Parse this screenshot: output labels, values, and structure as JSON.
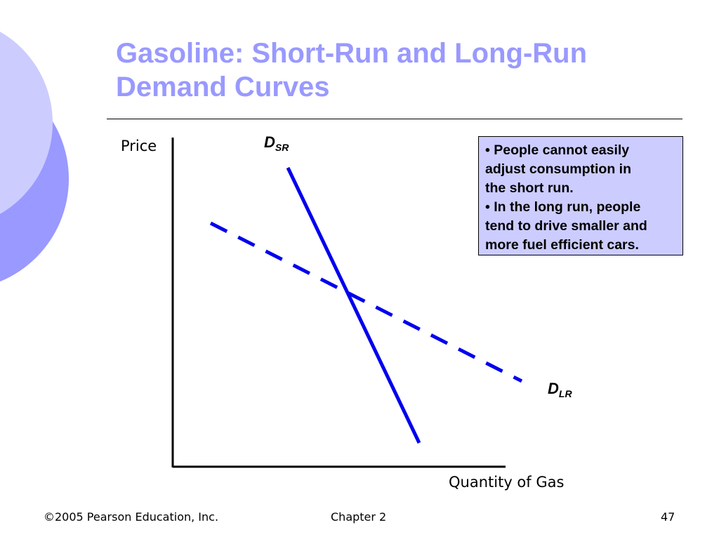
{
  "slide": {
    "title_line1": "Gasoline: Short-Run and Long-Run",
    "title_line2": "Demand Curves",
    "colors": {
      "title": "#9999ff",
      "curves": "#0000ee",
      "note_box": "#ccccff",
      "deco_light": "#ccccff",
      "deco_dark": "#9999ff"
    }
  },
  "diagram": {
    "y_axis_label": "Price",
    "x_axis_label": "Quantity of Gas",
    "short_run_curve": {
      "label_main": "D",
      "label_sub": "SR",
      "style": "solid"
    },
    "long_run_curve": {
      "label_main": "D",
      "label_sub": "LR",
      "style": "dashed"
    }
  },
  "note": {
    "lines": [
      "• People cannot easily",
      "adjust consumption in",
      "the short run.",
      "• In the long run, people",
      "tend to drive smaller and",
      "more fuel efficient cars."
    ]
  },
  "footer": {
    "copyright": "©2005 Pearson Education, Inc.",
    "chapter": "Chapter 2",
    "page_number": "47"
  }
}
